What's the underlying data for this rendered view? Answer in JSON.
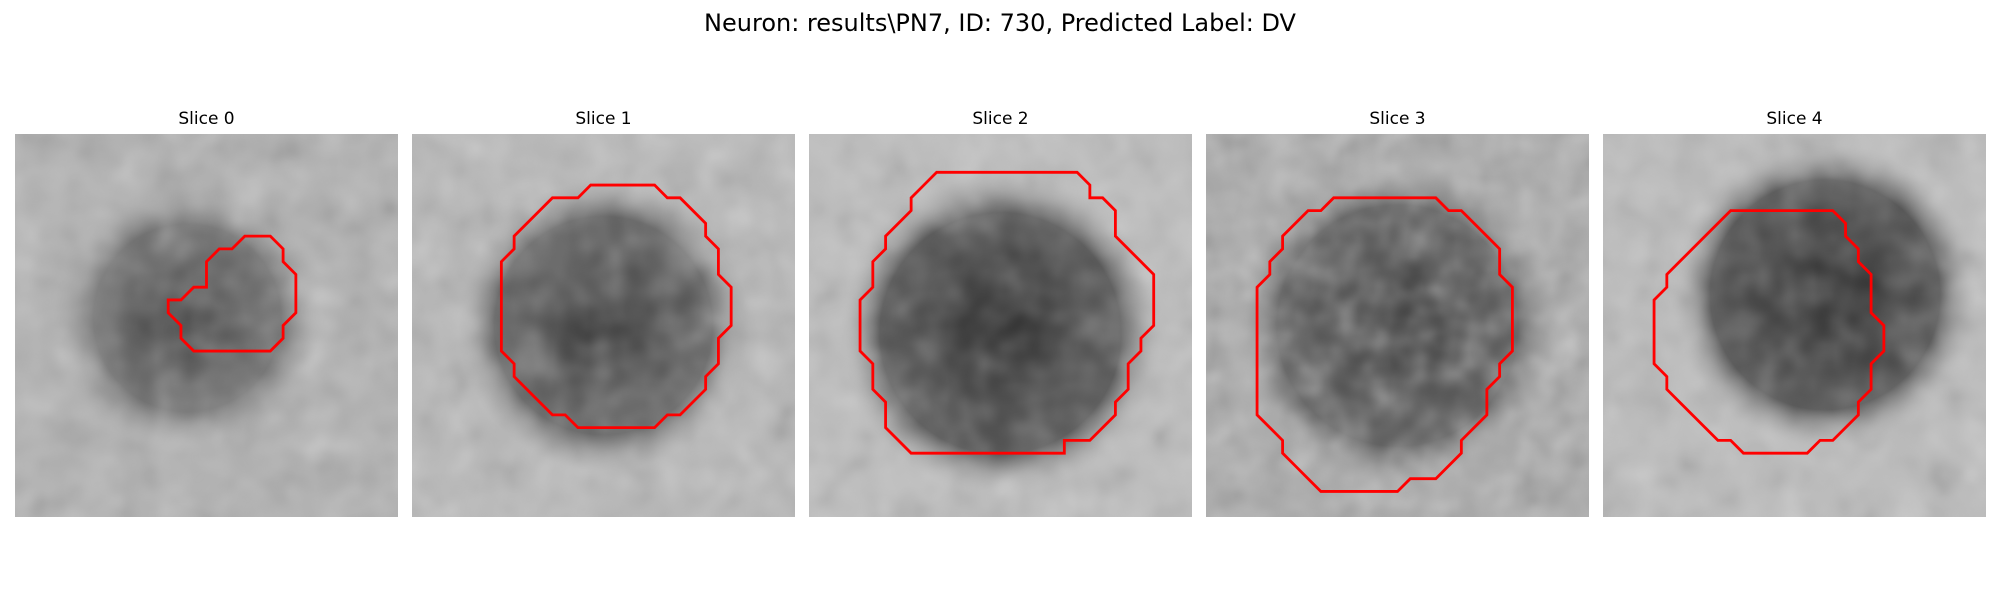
{
  "suptitle": "Neuron: results\\PN7, ID: 730, Predicted Label: DV",
  "slices": [
    {
      "title": "Slice 0"
    },
    {
      "title": "Slice 1"
    },
    {
      "title": "Slice 2"
    },
    {
      "title": "Slice 3"
    },
    {
      "title": "Slice 4"
    }
  ],
  "contour_color": "#ff0000"
}
